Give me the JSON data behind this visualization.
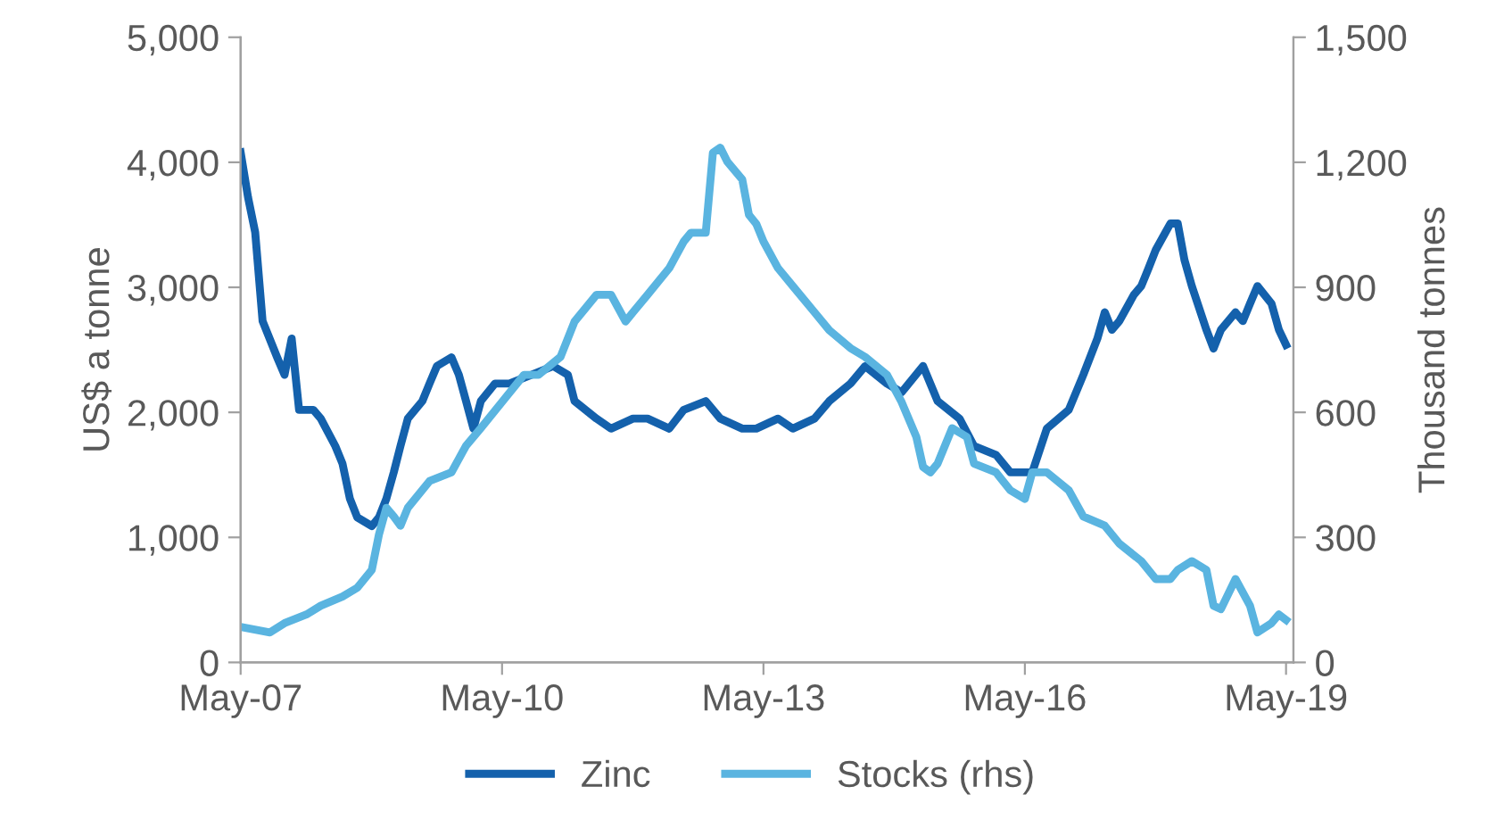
{
  "chart_data": {
    "type": "line",
    "ylabel": "US$ a tonne",
    "y2label": "Thousand tonnes",
    "xlim": [
      "2007-05",
      "2019-06"
    ],
    "xticks": [
      {
        "value": "2007-05",
        "label": "May-07"
      },
      {
        "value": "2010-05",
        "label": "May-10"
      },
      {
        "value": "2013-05",
        "label": "May-13"
      },
      {
        "value": "2016-05",
        "label": "May-16"
      },
      {
        "value": "2019-05",
        "label": "May-19"
      }
    ],
    "ylim": [
      0,
      5000
    ],
    "yticks": [
      {
        "value": 0,
        "label": "0"
      },
      {
        "value": 1000,
        "label": "1,000"
      },
      {
        "value": 2000,
        "label": "2,000"
      },
      {
        "value": 3000,
        "label": "3,000"
      },
      {
        "value": 4000,
        "label": "4,000"
      },
      {
        "value": 5000,
        "label": "5,000"
      }
    ],
    "y2lim": [
      0,
      1500
    ],
    "y2ticks": [
      {
        "value": 0,
        "label": "0"
      },
      {
        "value": 300,
        "label": "300"
      },
      {
        "value": 600,
        "label": "600"
      },
      {
        "value": 900,
        "label": "900"
      },
      {
        "value": 1200,
        "label": "1,200"
      },
      {
        "value": 1500,
        "label": "1,500"
      }
    ],
    "grid": false,
    "legend": "bottom",
    "marker": "none",
    "line_style": "solid",
    "series": [
      {
        "name": "Zinc",
        "color": "#1461ac",
        "x": [
          "2007-05",
          "2007-06",
          "2007-07",
          "2007-08",
          "2007-10",
          "2007-11",
          "2007-12",
          "2008-01",
          "2008-03",
          "2008-04",
          "2008-06",
          "2008-07",
          "2008-08",
          "2008-09",
          "2008-11",
          "2008-12",
          "2009-01",
          "2009-02",
          "2009-03",
          "2009-04",
          "2009-06",
          "2009-07",
          "2009-08",
          "2009-10",
          "2009-11",
          "2009-12",
          "2010-01",
          "2010-02",
          "2010-04",
          "2010-06",
          "2010-09",
          "2010-12",
          "2011-02",
          "2011-03",
          "2011-06",
          "2011-08",
          "2011-11",
          "2012-01",
          "2012-04",
          "2012-06",
          "2012-09",
          "2012-11",
          "2013-02",
          "2013-04",
          "2013-07",
          "2013-09",
          "2013-12",
          "2014-02",
          "2014-05",
          "2014-07",
          "2014-10",
          "2014-12",
          "2015-03",
          "2015-05",
          "2015-08",
          "2015-10",
          "2016-01",
          "2016-03",
          "2016-06",
          "2016-08",
          "2016-11",
          "2017-01",
          "2017-03",
          "2017-04",
          "2017-05",
          "2017-06",
          "2017-08",
          "2017-09",
          "2017-10",
          "2017-11",
          "2018-01",
          "2018-02",
          "2018-03",
          "2018-04",
          "2018-06",
          "2018-07",
          "2018-08",
          "2018-10",
          "2018-11",
          "2018-12",
          "2019-01",
          "2019-03",
          "2019-04",
          "2019-05"
        ],
        "values": [
          4080,
          3720,
          3440,
          2730,
          2440,
          2300,
          2590,
          2020,
          2020,
          1950,
          1730,
          1590,
          1310,
          1160,
          1090,
          1160,
          1310,
          1520,
          1730,
          1950,
          2090,
          2230,
          2370,
          2440,
          2300,
          2090,
          1870,
          2090,
          2230,
          2230,
          2300,
          2370,
          2300,
          2090,
          1950,
          1870,
          1950,
          1950,
          1870,
          2020,
          2090,
          1950,
          1870,
          1870,
          1950,
          1870,
          1950,
          2090,
          2230,
          2370,
          2230,
          2160,
          2370,
          2090,
          1950,
          1730,
          1660,
          1520,
          1520,
          1870,
          2020,
          2300,
          2590,
          2800,
          2660,
          2730,
          2940,
          3010,
          3150,
          3300,
          3510,
          3510,
          3220,
          3010,
          2660,
          2510,
          2660,
          2800,
          2730,
          2870,
          3010,
          2870,
          2660,
          2540
        ]
      },
      {
        "name": "Stocks (rhs)",
        "color": "#5ab4e0",
        "axis": "y2",
        "x": [
          "2007-05",
          "2007-09",
          "2007-11",
          "2008-02",
          "2008-04",
          "2008-07",
          "2008-09",
          "2008-11",
          "2008-12",
          "2009-01",
          "2009-02",
          "2009-03",
          "2009-04",
          "2009-07",
          "2009-10",
          "2009-12",
          "2010-02",
          "2010-05",
          "2010-08",
          "2010-10",
          "2011-01",
          "2011-03",
          "2011-06",
          "2011-08",
          "2011-10",
          "2011-11",
          "2012-01",
          "2012-04",
          "2012-06",
          "2012-07",
          "2012-09",
          "2012-10",
          "2012-11",
          "2012-12",
          "2013-02",
          "2013-03",
          "2013-04",
          "2013-05",
          "2013-07",
          "2013-09",
          "2013-12",
          "2014-02",
          "2014-05",
          "2014-07",
          "2014-10",
          "2014-12",
          "2015-02",
          "2015-03",
          "2015-04",
          "2015-05",
          "2015-07",
          "2015-09",
          "2015-10",
          "2016-01",
          "2016-03",
          "2016-05",
          "2016-06",
          "2016-08",
          "2016-11",
          "2017-01",
          "2017-04",
          "2017-06",
          "2017-09",
          "2017-11",
          "2018-01",
          "2018-02",
          "2018-04",
          "2018-06",
          "2018-07",
          "2018-08",
          "2018-10",
          "2018-12",
          "2019-01",
          "2019-03",
          "2019-04",
          "2019-05"
        ],
        "values": [
          85,
          72,
          94,
          115,
          136,
          158,
          179,
          222,
          307,
          371,
          350,
          328,
          371,
          435,
          456,
          520,
          562,
          625,
          690,
          690,
          733,
          818,
          882,
          882,
          818,
          840,
          882,
          946,
          1010,
          1031,
          1031,
          1223,
          1235,
          1201,
          1159,
          1074,
          1052,
          1010,
          946,
          903,
          840,
          797,
          754,
          733,
          690,
          625,
          541,
          469,
          456,
          477,
          562,
          541,
          477,
          456,
          413,
          392,
          456,
          456,
          413,
          350,
          328,
          285,
          243,
          200,
          200,
          222,
          243,
          222,
          136,
          128,
          200,
          136,
          72,
          94,
          115,
          102
        ]
      }
    ]
  }
}
